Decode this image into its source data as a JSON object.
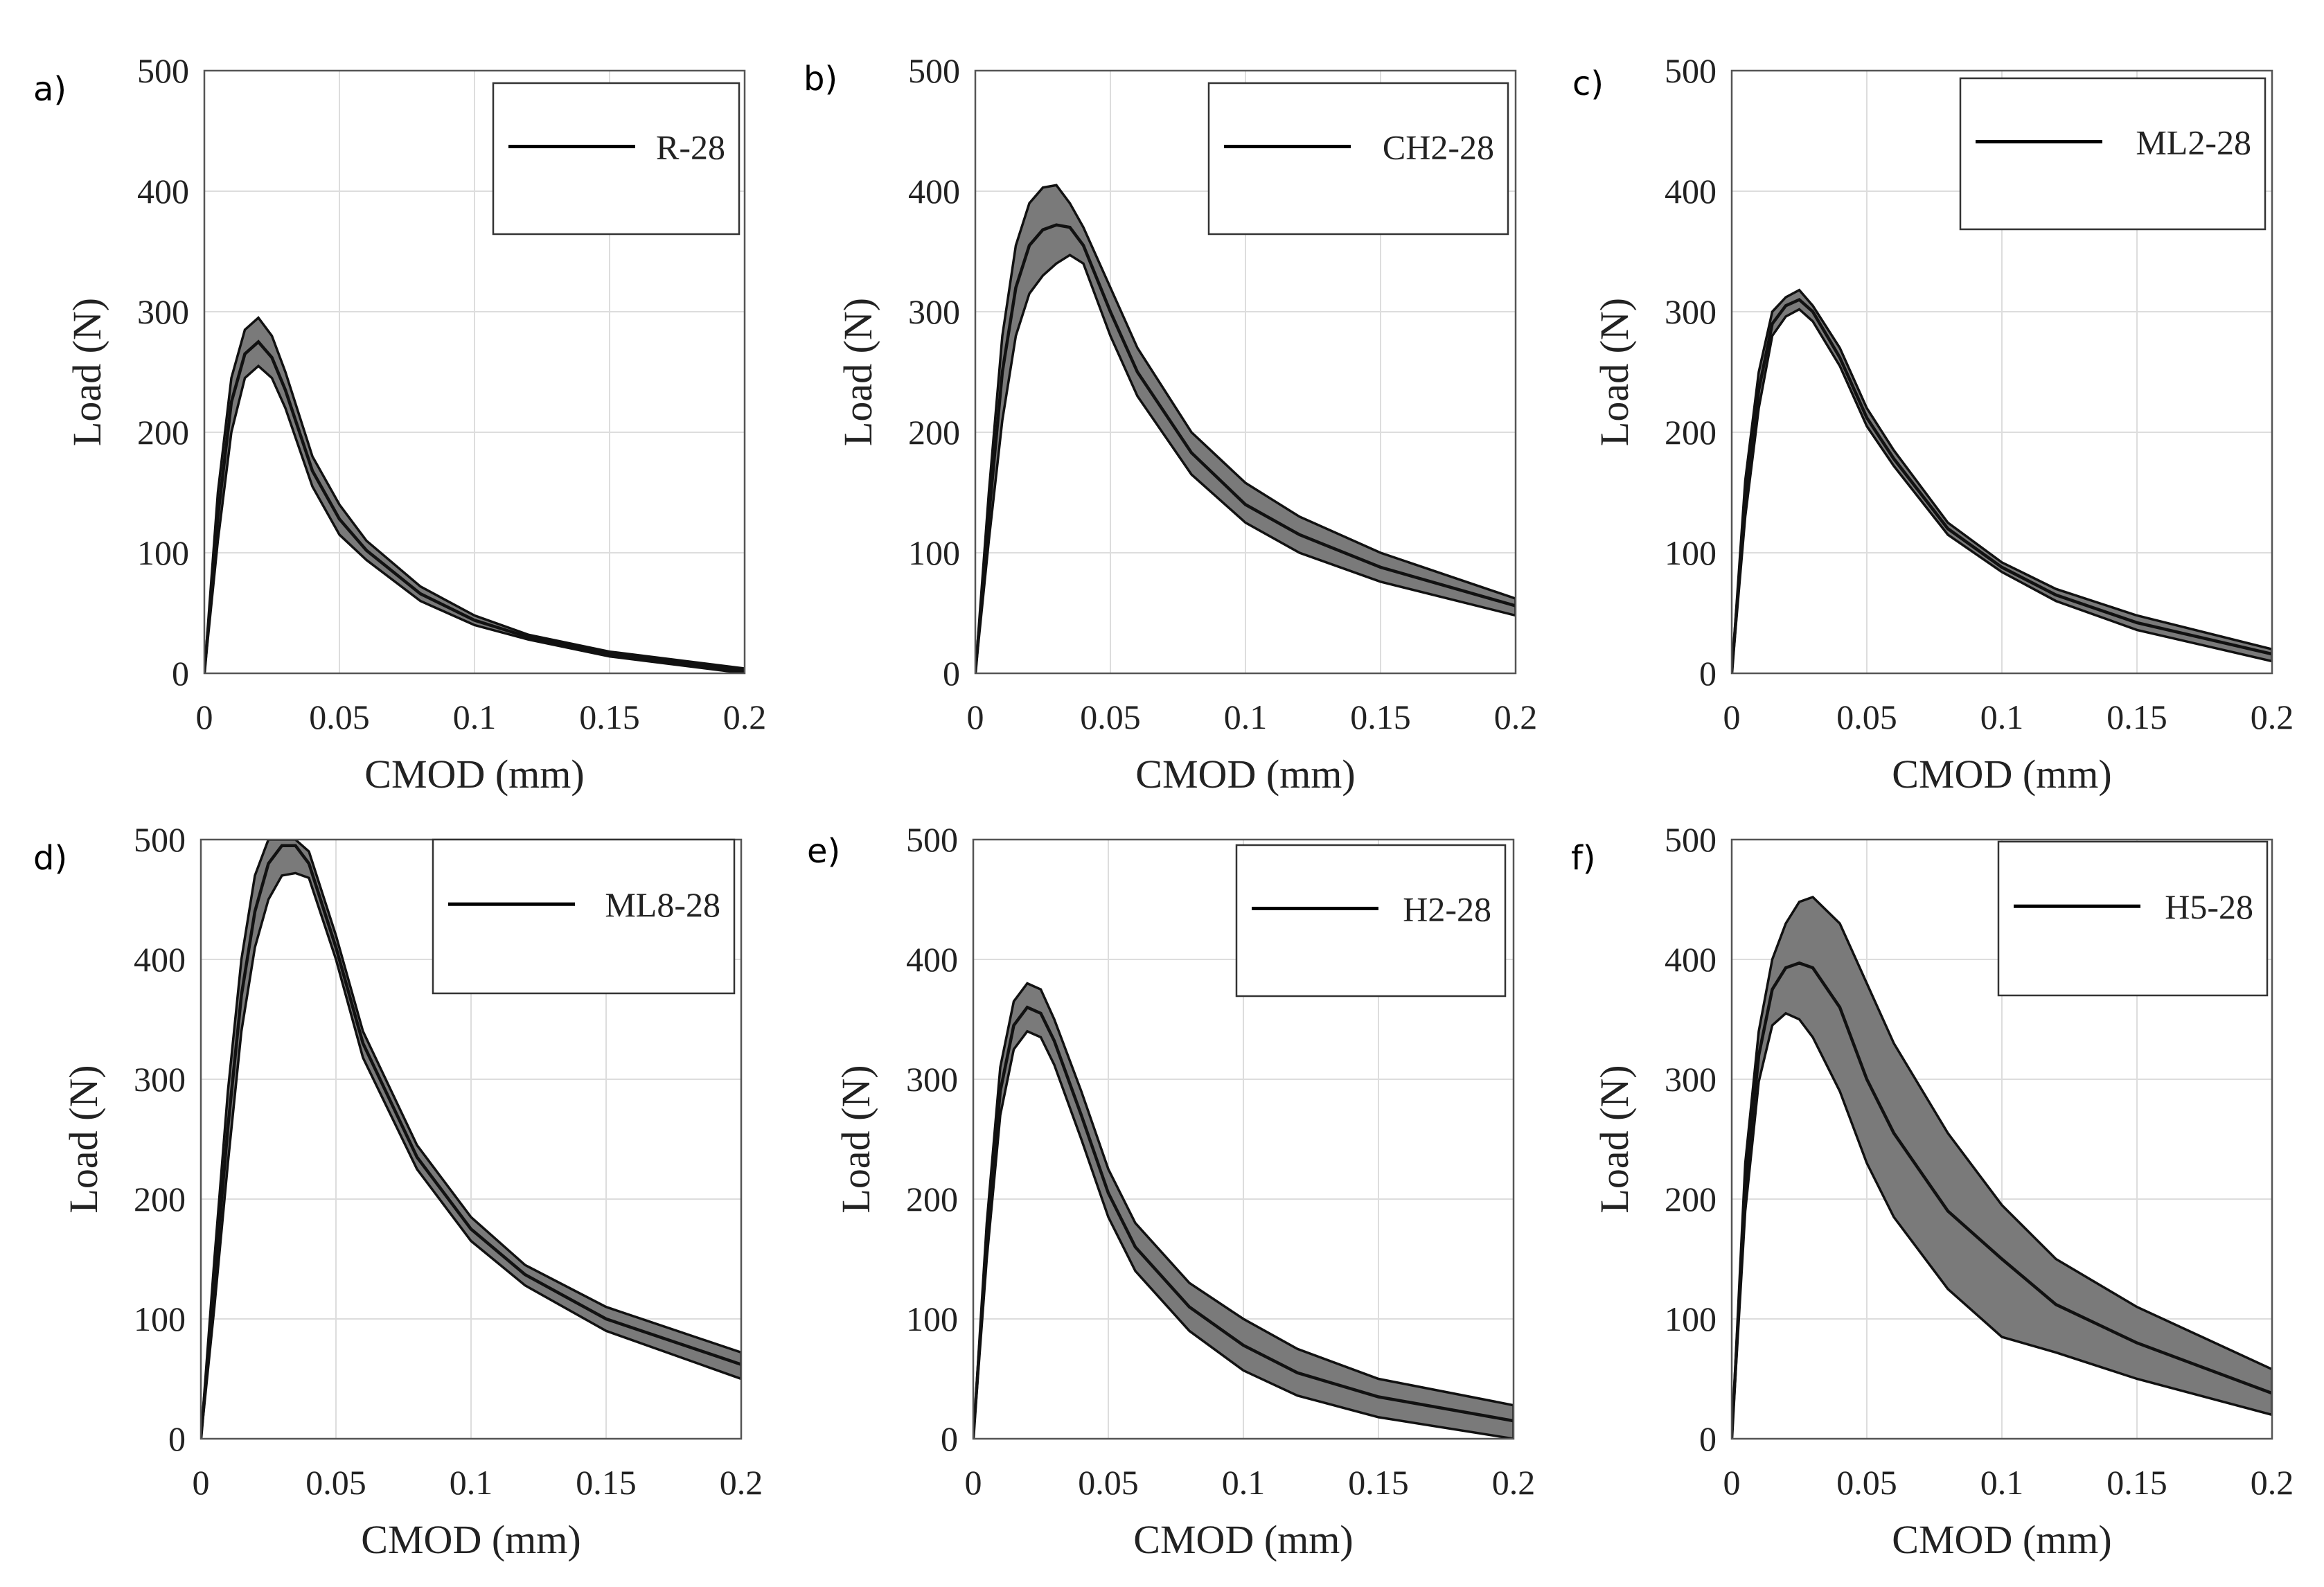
{
  "chart_data": [
    {
      "panel": "a)",
      "type": "area",
      "legend": "R-28",
      "xlabel": "CMOD (mm)",
      "ylabel": "Load (N)",
      "xlim": [
        0,
        0.2
      ],
      "ylim": [
        0,
        500
      ],
      "xticks": [
        "0",
        "0.05",
        "0.1",
        "0.15",
        "0.2"
      ],
      "yticks": [
        "0",
        "100",
        "200",
        "300",
        "400",
        "500"
      ],
      "grid": true,
      "legend_position": "top-right",
      "x": [
        0,
        0.005,
        0.01,
        0.015,
        0.02,
        0.025,
        0.03,
        0.04,
        0.05,
        0.06,
        0.08,
        0.1,
        0.12,
        0.15,
        0.2
      ],
      "series": [
        {
          "role": "upper",
          "values": [
            0,
            150,
            245,
            285,
            295,
            280,
            250,
            180,
            140,
            110,
            72,
            48,
            32,
            18,
            4
          ]
        },
        {
          "role": "mean",
          "values": [
            0,
            130,
            225,
            265,
            275,
            262,
            235,
            168,
            128,
            102,
            66,
            44,
            30,
            16,
            2
          ]
        },
        {
          "role": "lower",
          "values": [
            0,
            110,
            200,
            245,
            255,
            245,
            220,
            155,
            115,
            94,
            60,
            40,
            28,
            14,
            0
          ]
        }
      ]
    },
    {
      "panel": "b)",
      "type": "area",
      "legend": "CH2-28",
      "xlabel": "CMOD (mm)",
      "ylabel": "Load (N)",
      "xlim": [
        0,
        0.2
      ],
      "ylim": [
        0,
        500
      ],
      "xticks": [
        "0",
        "0.05",
        "0.1",
        "0.15",
        "0.2"
      ],
      "yticks": [
        "0",
        "100",
        "200",
        "300",
        "400",
        "500"
      ],
      "grid": true,
      "legend_position": "top-right",
      "x": [
        0,
        0.005,
        0.01,
        0.015,
        0.02,
        0.025,
        0.03,
        0.035,
        0.04,
        0.05,
        0.06,
        0.08,
        0.1,
        0.12,
        0.15,
        0.2
      ],
      "series": [
        {
          "role": "upper",
          "values": [
            0,
            150,
            280,
            355,
            390,
            403,
            405,
            390,
            370,
            320,
            270,
            200,
            158,
            130,
            100,
            62
          ]
        },
        {
          "role": "mean",
          "values": [
            0,
            130,
            250,
            320,
            355,
            368,
            372,
            370,
            355,
            300,
            250,
            183,
            140,
            115,
            88,
            56
          ]
        },
        {
          "role": "lower",
          "values": [
            0,
            110,
            210,
            280,
            315,
            330,
            340,
            347,
            340,
            280,
            230,
            165,
            125,
            100,
            76,
            48
          ]
        }
      ]
    },
    {
      "panel": "c)",
      "type": "area",
      "legend": "ML2-28",
      "xlabel": "CMOD (mm)",
      "ylabel": "Load (N)",
      "xlim": [
        0,
        0.2
      ],
      "ylim": [
        0,
        500
      ],
      "xticks": [
        "0",
        "0.05",
        "0.1",
        "0.15",
        "0.2"
      ],
      "yticks": [
        "0",
        "100",
        "200",
        "300",
        "400",
        "500"
      ],
      "grid": true,
      "legend_position": "top-right",
      "x": [
        0,
        0.005,
        0.01,
        0.015,
        0.02,
        0.025,
        0.03,
        0.04,
        0.05,
        0.06,
        0.08,
        0.1,
        0.12,
        0.15,
        0.2
      ],
      "series": [
        {
          "role": "upper",
          "values": [
            0,
            160,
            250,
            300,
            312,
            318,
            305,
            270,
            220,
            185,
            125,
            92,
            70,
            48,
            20
          ]
        },
        {
          "role": "mean",
          "values": [
            0,
            145,
            235,
            290,
            305,
            310,
            300,
            262,
            212,
            178,
            120,
            88,
            65,
            42,
            16
          ]
        },
        {
          "role": "lower",
          "values": [
            0,
            130,
            220,
            280,
            296,
            302,
            292,
            255,
            205,
            172,
            115,
            84,
            60,
            36,
            10
          ]
        }
      ]
    },
    {
      "panel": "d)",
      "type": "area",
      "legend": "ML8-28",
      "xlabel": "CMOD (mm)",
      "ylabel": "Load (N)",
      "xlim": [
        0,
        0.2
      ],
      "ylim": [
        0,
        500
      ],
      "xticks": [
        "0",
        "0.05",
        "0.1",
        "0.15",
        "0.2"
      ],
      "yticks": [
        "0",
        "100",
        "200",
        "300",
        "400",
        "500"
      ],
      "grid": true,
      "legend_position": "top-right",
      "x": [
        0,
        0.005,
        0.01,
        0.015,
        0.02,
        0.025,
        0.03,
        0.035,
        0.04,
        0.05,
        0.06,
        0.08,
        0.1,
        0.12,
        0.15,
        0.2
      ],
      "series": [
        {
          "role": "upper",
          "values": [
            0,
            150,
            290,
            400,
            470,
            500,
            500,
            500,
            490,
            420,
            340,
            245,
            185,
            145,
            110,
            72
          ]
        },
        {
          "role": "mean",
          "values": [
            0,
            130,
            260,
            370,
            440,
            480,
            495,
            495,
            480,
            410,
            330,
            235,
            175,
            137,
            100,
            62
          ]
        },
        {
          "role": "lower",
          "values": [
            0,
            110,
            230,
            340,
            410,
            450,
            470,
            472,
            468,
            400,
            318,
            225,
            165,
            128,
            90,
            50
          ]
        }
      ]
    },
    {
      "panel": "e)",
      "type": "area",
      "legend": "H2-28",
      "xlabel": "CMOD (mm)",
      "ylabel": "Load (N)",
      "xlim": [
        0,
        0.2
      ],
      "ylim": [
        0,
        500
      ],
      "xticks": [
        "0",
        "0.05",
        "0.1",
        "0.15",
        "0.2"
      ],
      "yticks": [
        "0",
        "100",
        "200",
        "300",
        "400",
        "500"
      ],
      "grid": true,
      "legend_position": "top-right",
      "x": [
        0,
        0.005,
        0.01,
        0.015,
        0.02,
        0.025,
        0.03,
        0.04,
        0.05,
        0.06,
        0.08,
        0.1,
        0.12,
        0.15,
        0.2
      ],
      "series": [
        {
          "role": "upper",
          "values": [
            0,
            180,
            310,
            365,
            380,
            375,
            350,
            290,
            225,
            180,
            130,
            100,
            75,
            50,
            28
          ]
        },
        {
          "role": "mean",
          "values": [
            0,
            165,
            290,
            345,
            360,
            355,
            332,
            270,
            205,
            160,
            110,
            78,
            55,
            35,
            15
          ]
        },
        {
          "role": "lower",
          "values": [
            0,
            150,
            270,
            325,
            340,
            335,
            312,
            250,
            185,
            140,
            90,
            57,
            36,
            18,
            0
          ]
        }
      ]
    },
    {
      "panel": "f)",
      "type": "area",
      "legend": "H5-28",
      "xlabel": "CMOD (mm)",
      "ylabel": "Load (N)",
      "xlim": [
        0,
        0.2
      ],
      "ylim": [
        0,
        500
      ],
      "xticks": [
        "0",
        "0.05",
        "0.1",
        "0.15",
        "0.2"
      ],
      "yticks": [
        "0",
        "100",
        "200",
        "300",
        "400",
        "500"
      ],
      "grid": true,
      "legend_position": "top-right",
      "x": [
        0,
        0.005,
        0.01,
        0.015,
        0.02,
        0.025,
        0.03,
        0.04,
        0.05,
        0.06,
        0.08,
        0.1,
        0.12,
        0.15,
        0.2
      ],
      "series": [
        {
          "role": "upper",
          "values": [
            0,
            230,
            340,
            400,
            430,
            448,
            452,
            430,
            380,
            330,
            255,
            195,
            150,
            110,
            58
          ]
        },
        {
          "role": "mean",
          "values": [
            0,
            210,
            320,
            375,
            393,
            397,
            393,
            360,
            300,
            255,
            190,
            150,
            112,
            80,
            38
          ]
        },
        {
          "role": "lower",
          "values": [
            0,
            190,
            298,
            345,
            355,
            350,
            335,
            290,
            230,
            185,
            125,
            85,
            72,
            50,
            20
          ]
        }
      ]
    }
  ]
}
